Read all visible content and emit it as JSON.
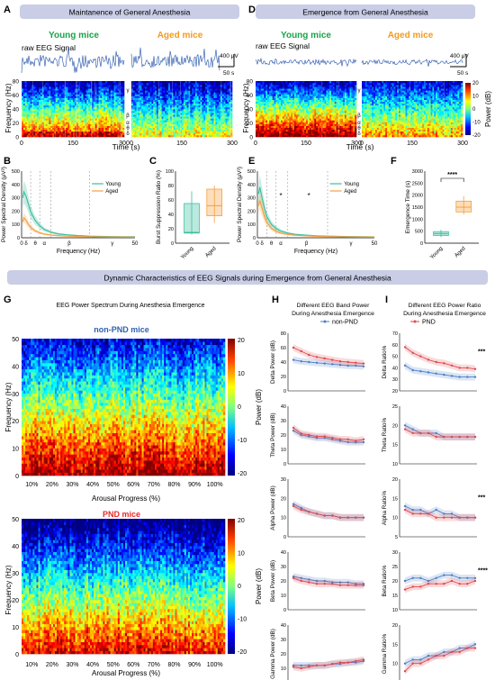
{
  "panel_letters": {
    "A": "A",
    "B": "B",
    "C": "C",
    "D": "D",
    "E": "E",
    "F": "F",
    "G": "G",
    "H": "H",
    "I": "I"
  },
  "section_A": {
    "banner": "Maintanence of General Anesthesia",
    "young": "Young mice",
    "aged": "Aged mice",
    "raw_label": "raw EEG Signal",
    "amp_scale": "400 μV",
    "time_scale": "50 s",
    "ylabel": "Frequency (Hz)",
    "xlabel": "Time (s)",
    "yticks": [
      "80",
      "60",
      "40",
      "20",
      "0"
    ],
    "xticks": [
      "0",
      "150",
      "300",
      "0",
      "150",
      "300"
    ],
    "bands": [
      "γ",
      "β",
      "α",
      "θ",
      "δ"
    ]
  },
  "section_D": {
    "banner": "Emergence from General Anesthesia",
    "young": "Young mice",
    "aged": "Aged mice",
    "raw_label": "raw EEG Signal",
    "amp_scale": "400 μV",
    "time_scale": "50 s",
    "ylabel": "Frequency (Hz)",
    "xlabel": "Time (s)",
    "yticks": [
      "80",
      "60",
      "40",
      "20",
      "0"
    ],
    "xticks": [
      "0",
      "150",
      "300",
      "0",
      "150",
      "300"
    ],
    "bands": [
      "γ",
      "β",
      "α",
      "θ",
      "δ"
    ],
    "colorbar_label": "Power (dB)",
    "colorbar_ticks": [
      "20",
      "10",
      "0",
      "-10",
      "-20"
    ]
  },
  "section_G": {
    "banner": "Dynamic Characteristics of EEG Signals during Emergence from General Anesthesia",
    "title": "EEG Power Spectrum During Anesthesia Emergence",
    "top_label": "non-PND mice",
    "bottom_label": "PND mice",
    "ylabel": "Frequency (Hz)",
    "xlabel": "Arousal Progress (%)",
    "yticks": [
      "50",
      "40",
      "30",
      "20",
      "10",
      "0"
    ],
    "xticks": [
      "10%",
      "20%",
      "30%",
      "40%",
      "50%",
      "60%",
      "70%",
      "80%",
      "90%",
      "100%"
    ],
    "colorbar_label": "Power (dB)",
    "colorbar_ticks": [
      "20",
      "10",
      "0",
      "-10",
      "-20"
    ]
  },
  "colors": {
    "young": "#3dbf9e",
    "aged": "#f5a040",
    "nonpnd": "#4a7ec6",
    "pnd": "#e0474c",
    "banner_bg": "#c9cde6",
    "green_text": "#1aa34a",
    "orange_text": "#f39a1e",
    "nonpnd_text": "#2f5fb3",
    "pnd_text": "#e62a2a"
  },
  "chart_data": [
    {
      "id": "B",
      "type": "line",
      "ylabel": "Power Spectral Density (μV²)",
      "xlabel": "Frequency (Hz)",
      "ylim": [
        0,
        500
      ],
      "yticks": [
        "500",
        "400",
        "300",
        "200",
        "100",
        "0"
      ],
      "xticks": [
        "0",
        "δ",
        "θ",
        "α",
        "β",
        "γ",
        "50"
      ],
      "x": [
        0.5,
        1,
        2,
        3,
        4,
        6,
        8,
        10,
        13,
        16,
        20,
        25,
        30,
        35,
        40,
        45,
        50
      ],
      "series": [
        {
          "name": "Young",
          "values": [
            300,
            345,
            310,
            250,
            195,
            130,
            90,
            62,
            42,
            30,
            22,
            16,
            12,
            10,
            9,
            8,
            8
          ]
        },
        {
          "name": "Aged",
          "values": [
            120,
            150,
            130,
            100,
            78,
            52,
            38,
            28,
            20,
            16,
            12,
            10,
            8,
            7,
            6,
            6,
            5
          ]
        }
      ]
    },
    {
      "id": "C",
      "type": "box",
      "ylabel": "Burst Suppression Ratio (%)",
      "ylim": [
        0,
        100
      ],
      "yticks": [
        "100",
        "80",
        "60",
        "40",
        "20",
        "0"
      ],
      "categories": [
        "Young",
        "Aged"
      ],
      "series": [
        {
          "name": "Young",
          "min": 12,
          "q1": 14,
          "median": 15,
          "q3": 55,
          "max": 72
        },
        {
          "name": "Aged",
          "min": 28,
          "q1": 38,
          "median": 52,
          "q3": 75,
          "max": 80
        }
      ]
    },
    {
      "id": "E",
      "type": "line",
      "ylabel": "Power Spectral Density (μV²)",
      "xlabel": "Frequency (Hz)",
      "ylim": [
        0,
        500
      ],
      "yticks": [
        "500",
        "400",
        "300",
        "200",
        "100",
        "0"
      ],
      "xticks": [
        "0",
        "δ",
        "θ",
        "α",
        "β",
        "γ",
        "50"
      ],
      "annotations": [
        "*",
        "*"
      ],
      "x": [
        0.5,
        1,
        2,
        3,
        4,
        6,
        8,
        10,
        13,
        16,
        20,
        25,
        30,
        35,
        40,
        45,
        50
      ],
      "series": [
        {
          "name": "Young",
          "values": [
            330,
            380,
            300,
            220,
            160,
            100,
            70,
            50,
            35,
            26,
            20,
            15,
            12,
            10,
            9,
            8,
            7
          ]
        },
        {
          "name": "Aged",
          "values": [
            240,
            280,
            220,
            160,
            115,
            70,
            48,
            35,
            25,
            19,
            15,
            11,
            9,
            8,
            7,
            6,
            6
          ]
        }
      ]
    },
    {
      "id": "F",
      "type": "box",
      "ylabel": "Emergence Time (s)",
      "ylim": [
        0,
        3000
      ],
      "yticks": [
        "3000",
        "2500",
        "2000",
        "1500",
        "1000",
        "500",
        "0"
      ],
      "categories": [
        "Young",
        "Aged"
      ],
      "significance": "****",
      "series": [
        {
          "name": "Young",
          "min": 250,
          "q1": 320,
          "median": 400,
          "q3": 480,
          "max": 560
        },
        {
          "name": "Aged",
          "min": 1200,
          "q1": 1300,
          "median": 1500,
          "q3": 1750,
          "max": 1950
        }
      ]
    },
    {
      "id": "H",
      "type": "line",
      "title": "Different EEG Band Power During Anesthesia Emergence",
      "xlabel": "Arousal Progress (%)",
      "x": [
        10,
        20,
        30,
        40,
        50,
        60,
        70,
        80,
        90,
        100
      ],
      "xticks": [
        "10",
        "20",
        "30",
        "40",
        "50",
        "60",
        "70",
        "80",
        "90",
        "100"
      ],
      "legend": [
        "non-PND",
        "PND"
      ],
      "subplots": [
        {
          "ylabel": "Delta Power (dB)",
          "ylim": [
            0,
            80
          ],
          "yticks": [
            "80",
            "60",
            "40",
            "20",
            "0"
          ],
          "series": [
            {
              "name": "non-PND",
              "values": [
                43,
                41,
                40,
                39,
                38,
                37,
                36,
                35,
                35,
                34
              ]
            },
            {
              "name": "PND",
              "values": [
                60,
                55,
                50,
                47,
                45,
                43,
                41,
                40,
                39,
                38
              ]
            }
          ]
        },
        {
          "ylabel": "Theta Power (dB)",
          "ylim": [
            0,
            40
          ],
          "yticks": [
            "40",
            "30",
            "20",
            "10",
            "0"
          ],
          "series": [
            {
              "name": "non-PND",
              "values": [
                23,
                20,
                19,
                18,
                18,
                17,
                16,
                15,
                15,
                15
              ]
            },
            {
              "name": "PND",
              "values": [
                25,
                21,
                20,
                19,
                19,
                18,
                17,
                17,
                16,
                17
              ]
            }
          ]
        },
        {
          "ylabel": "Alpha Power (dB)",
          "ylim": [
            0,
            30
          ],
          "yticks": [
            "30",
            "20",
            "10",
            "0"
          ],
          "series": [
            {
              "name": "non-PND",
              "values": [
                17,
                15,
                13,
                12,
                11,
                11,
                10,
                10,
                10,
                10
              ]
            },
            {
              "name": "PND",
              "values": [
                16,
                14,
                13,
                12,
                11,
                11,
                10,
                10,
                10,
                10
              ]
            }
          ]
        },
        {
          "ylabel": "Beta Power (dB)",
          "ylim": [
            0,
            40
          ],
          "yticks": [
            "40",
            "30",
            "20",
            "10",
            "0"
          ],
          "series": [
            {
              "name": "non-PND",
              "values": [
                23,
                22,
                21,
                20,
                20,
                19,
                19,
                19,
                18,
                18
              ]
            },
            {
              "name": "PND",
              "values": [
                22,
                20,
                19,
                18,
                18,
                18,
                17,
                17,
                17,
                17
              ]
            }
          ]
        },
        {
          "ylabel": "Gamma Power (dB)",
          "ylim": [
            0,
            40
          ],
          "yticks": [
            "40",
            "30",
            "20",
            "10",
            "0"
          ],
          "series": [
            {
              "name": "non-PND",
              "values": [
                12,
                12,
                12,
                12,
                12,
                13,
                13,
                14,
                14,
                15
              ]
            },
            {
              "name": "PND",
              "values": [
                11,
                10,
                11,
                12,
                12,
                13,
                14,
                14,
                15,
                16
              ]
            }
          ]
        }
      ]
    },
    {
      "id": "I",
      "type": "line",
      "title": "Different EEG Power Ratio During Anesthesia Emergence",
      "xlabel": "Arousal Progress (%)",
      "x": [
        10,
        20,
        30,
        40,
        50,
        60,
        70,
        80,
        90,
        100
      ],
      "xticks": [
        "10",
        "20",
        "30",
        "40",
        "50",
        "60",
        "70",
        "80",
        "90",
        "100"
      ],
      "legend": [
        "PND"
      ],
      "subplots": [
        {
          "ylabel": "Delta Ratio%",
          "ylim": [
            20,
            70
          ],
          "yticks": [
            "70",
            "60",
            "50",
            "40",
            "30",
            "20"
          ],
          "significance": "***",
          "series": [
            {
              "name": "non-PND",
              "values": [
                42,
                38,
                37,
                36,
                35,
                34,
                33,
                32,
                32,
                32
              ]
            },
            {
              "name": "PND",
              "values": [
                58,
                53,
                50,
                47,
                45,
                44,
                42,
                40,
                40,
                39
              ]
            }
          ]
        },
        {
          "ylabel": "Theta Ratio%",
          "ylim": [
            10,
            25
          ],
          "yticks": [
            "25",
            "20",
            "15",
            "10"
          ],
          "series": [
            {
              "name": "non-PND",
              "values": [
                20,
                19,
                18,
                18,
                18,
                17,
                17,
                17,
                17,
                17
              ]
            },
            {
              "name": "PND",
              "values": [
                19,
                18,
                18,
                18,
                17,
                17,
                17,
                17,
                17,
                17
              ]
            }
          ]
        },
        {
          "ylabel": "Alpha Ratio%",
          "ylim": [
            5,
            20
          ],
          "yticks": [
            "20",
            "15",
            "10",
            "5"
          ],
          "significance": "***",
          "series": [
            {
              "name": "non-PND",
              "values": [
                13,
                12,
                12,
                11,
                12,
                11,
                11,
                10,
                10,
                10
              ]
            },
            {
              "name": "PND",
              "values": [
                12,
                11,
                11,
                11,
                10,
                10,
                10,
                10,
                10,
                10
              ]
            }
          ]
        },
        {
          "ylabel": "Beta Ratio%",
          "ylim": [
            10,
            30
          ],
          "yticks": [
            "30",
            "25",
            "20",
            "15",
            "10"
          ],
          "significance": "****",
          "series": [
            {
              "name": "non-PND",
              "values": [
                20,
                21,
                21,
                20,
                21,
                22,
                22,
                21,
                21,
                21
              ]
            },
            {
              "name": "PND",
              "values": [
                17,
                18,
                18,
                19,
                19,
                19,
                20,
                19,
                19,
                20
              ]
            }
          ]
        },
        {
          "ylabel": "Gamma Ratio%",
          "ylim": [
            5,
            20
          ],
          "yticks": [
            "20",
            "15",
            "10",
            "5"
          ],
          "series": [
            {
              "name": "non-PND",
              "values": [
                10,
                11,
                11,
                12,
                12,
                13,
                13,
                14,
                14,
                15
              ]
            },
            {
              "name": "PND",
              "values": [
                8,
                10,
                10,
                11,
                12,
                12,
                13,
                13,
                14,
                14
              ]
            }
          ]
        }
      ]
    }
  ]
}
